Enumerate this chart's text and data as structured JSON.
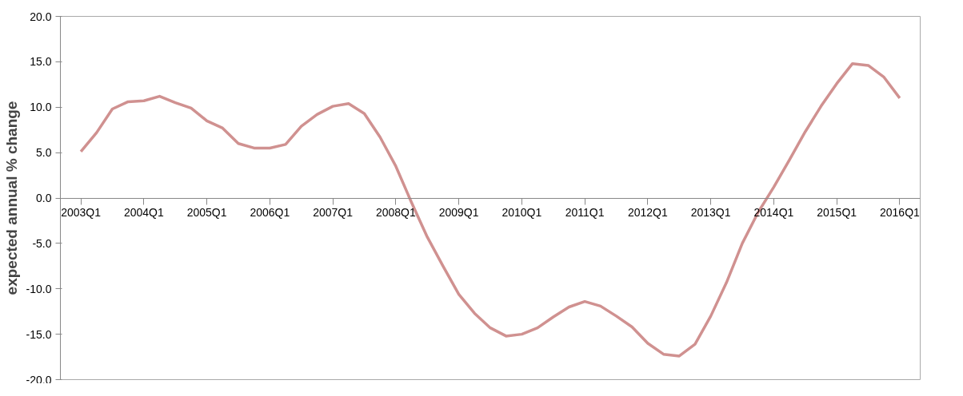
{
  "chart_data": {
    "type": "line",
    "ylabel": "expected annual % change",
    "categories": [
      "2003Q1",
      null,
      null,
      null,
      "2004Q1",
      null,
      null,
      null,
      "2005Q1",
      null,
      null,
      null,
      "2006Q1",
      null,
      null,
      null,
      "2007Q1",
      null,
      null,
      null,
      "2008Q1",
      null,
      null,
      null,
      "2009Q1",
      null,
      null,
      null,
      "2010Q1",
      null,
      null,
      null,
      "2011Q1",
      null,
      null,
      null,
      "2012Q1",
      null,
      null,
      null,
      "2013Q1",
      null,
      null,
      null,
      "2014Q1",
      null,
      null,
      null,
      "2015Q1",
      null,
      null,
      null,
      "2016Q1"
    ],
    "series": [
      {
        "color": "#d09190",
        "values": [
          5.1,
          7.2,
          9.8,
          10.6,
          10.7,
          11.2,
          10.5,
          9.9,
          8.5,
          7.7,
          6.0,
          5.5,
          5.5,
          5.9,
          7.9,
          9.2,
          10.1,
          10.4,
          9.3,
          6.7,
          3.5,
          -0.5,
          -4.3,
          -7.5,
          -10.6,
          -12.7,
          -14.3,
          -15.2,
          -15.0,
          -14.3,
          -13.1,
          -12.0,
          -11.4,
          -11.9,
          -13.0,
          -14.2,
          -16.0,
          -17.2,
          -17.4,
          -16.1,
          -13.0,
          -9.3,
          -5.0,
          -1.6,
          1.2,
          4.2,
          7.3,
          10.1,
          12.6,
          14.8,
          14.6,
          13.3,
          11.0
        ]
      }
    ],
    "ylim": [
      -20,
      20
    ],
    "yticks": [
      {
        "value": -20,
        "label": "-20.0"
      },
      {
        "value": -15,
        "label": "-15.0"
      },
      {
        "value": -10,
        "label": "-10.0"
      },
      {
        "value": -5,
        "label": "-5.0"
      },
      {
        "value": 0,
        "label": "0.0"
      },
      {
        "value": 5,
        "label": "5.0"
      },
      {
        "value": 10,
        "label": "10.0"
      },
      {
        "value": 15,
        "label": "15.0"
      },
      {
        "value": 20,
        "label": "20.0"
      }
    ],
    "grid": false,
    "marker": "none",
    "line_style": "solid"
  }
}
